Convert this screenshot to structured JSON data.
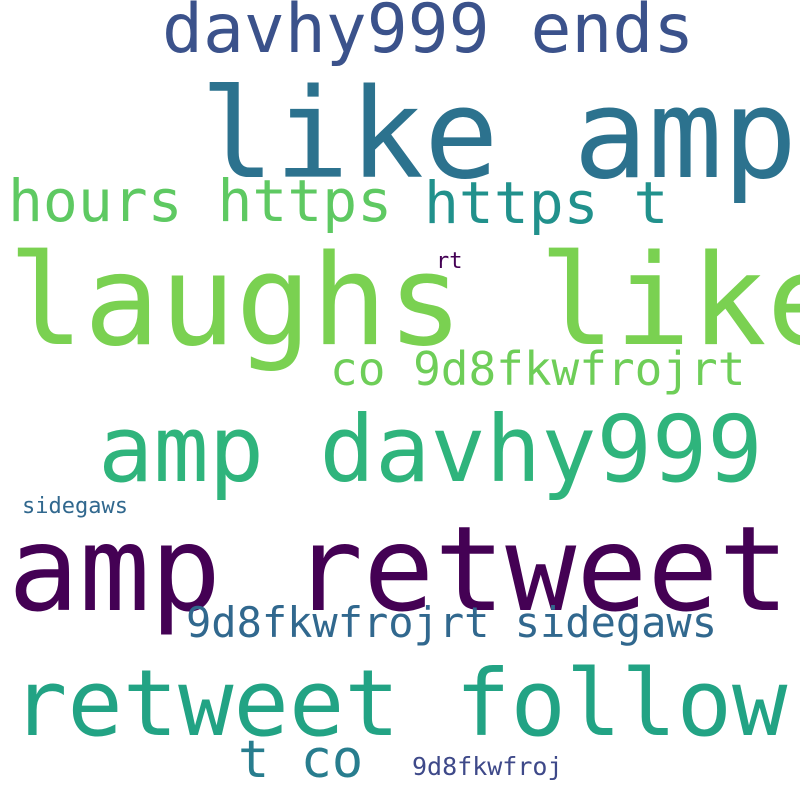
{
  "word_cloud": {
    "words": [
      {
        "text": "like amp",
        "color": "#2c728e"
      },
      {
        "text": "laughs like",
        "color": "#7ad151"
      },
      {
        "text": "amp retweet",
        "color": "#440154"
      },
      {
        "text": "amp davhy999",
        "color": "#2fb47c"
      },
      {
        "text": "retweet follow",
        "color": "#22a384"
      },
      {
        "text": "davhy999 ends",
        "color": "#3b528b"
      },
      {
        "text": "hours https",
        "color": "#5ec962"
      },
      {
        "text": "https t",
        "color": "#21918c"
      },
      {
        "text": "co 9d8fkwfrojrt",
        "color": "#6ece58"
      },
      {
        "text": "9d8fkwfrojrt sidegaws",
        "color": "#31688e"
      },
      {
        "text": "t co",
        "color": "#287d8e"
      },
      {
        "text": "sidegaws",
        "color": "#31688e"
      },
      {
        "text": "rt",
        "color": "#440154"
      },
      {
        "text": "9d8fkwfroj",
        "color": "#3e4989"
      }
    ]
  }
}
